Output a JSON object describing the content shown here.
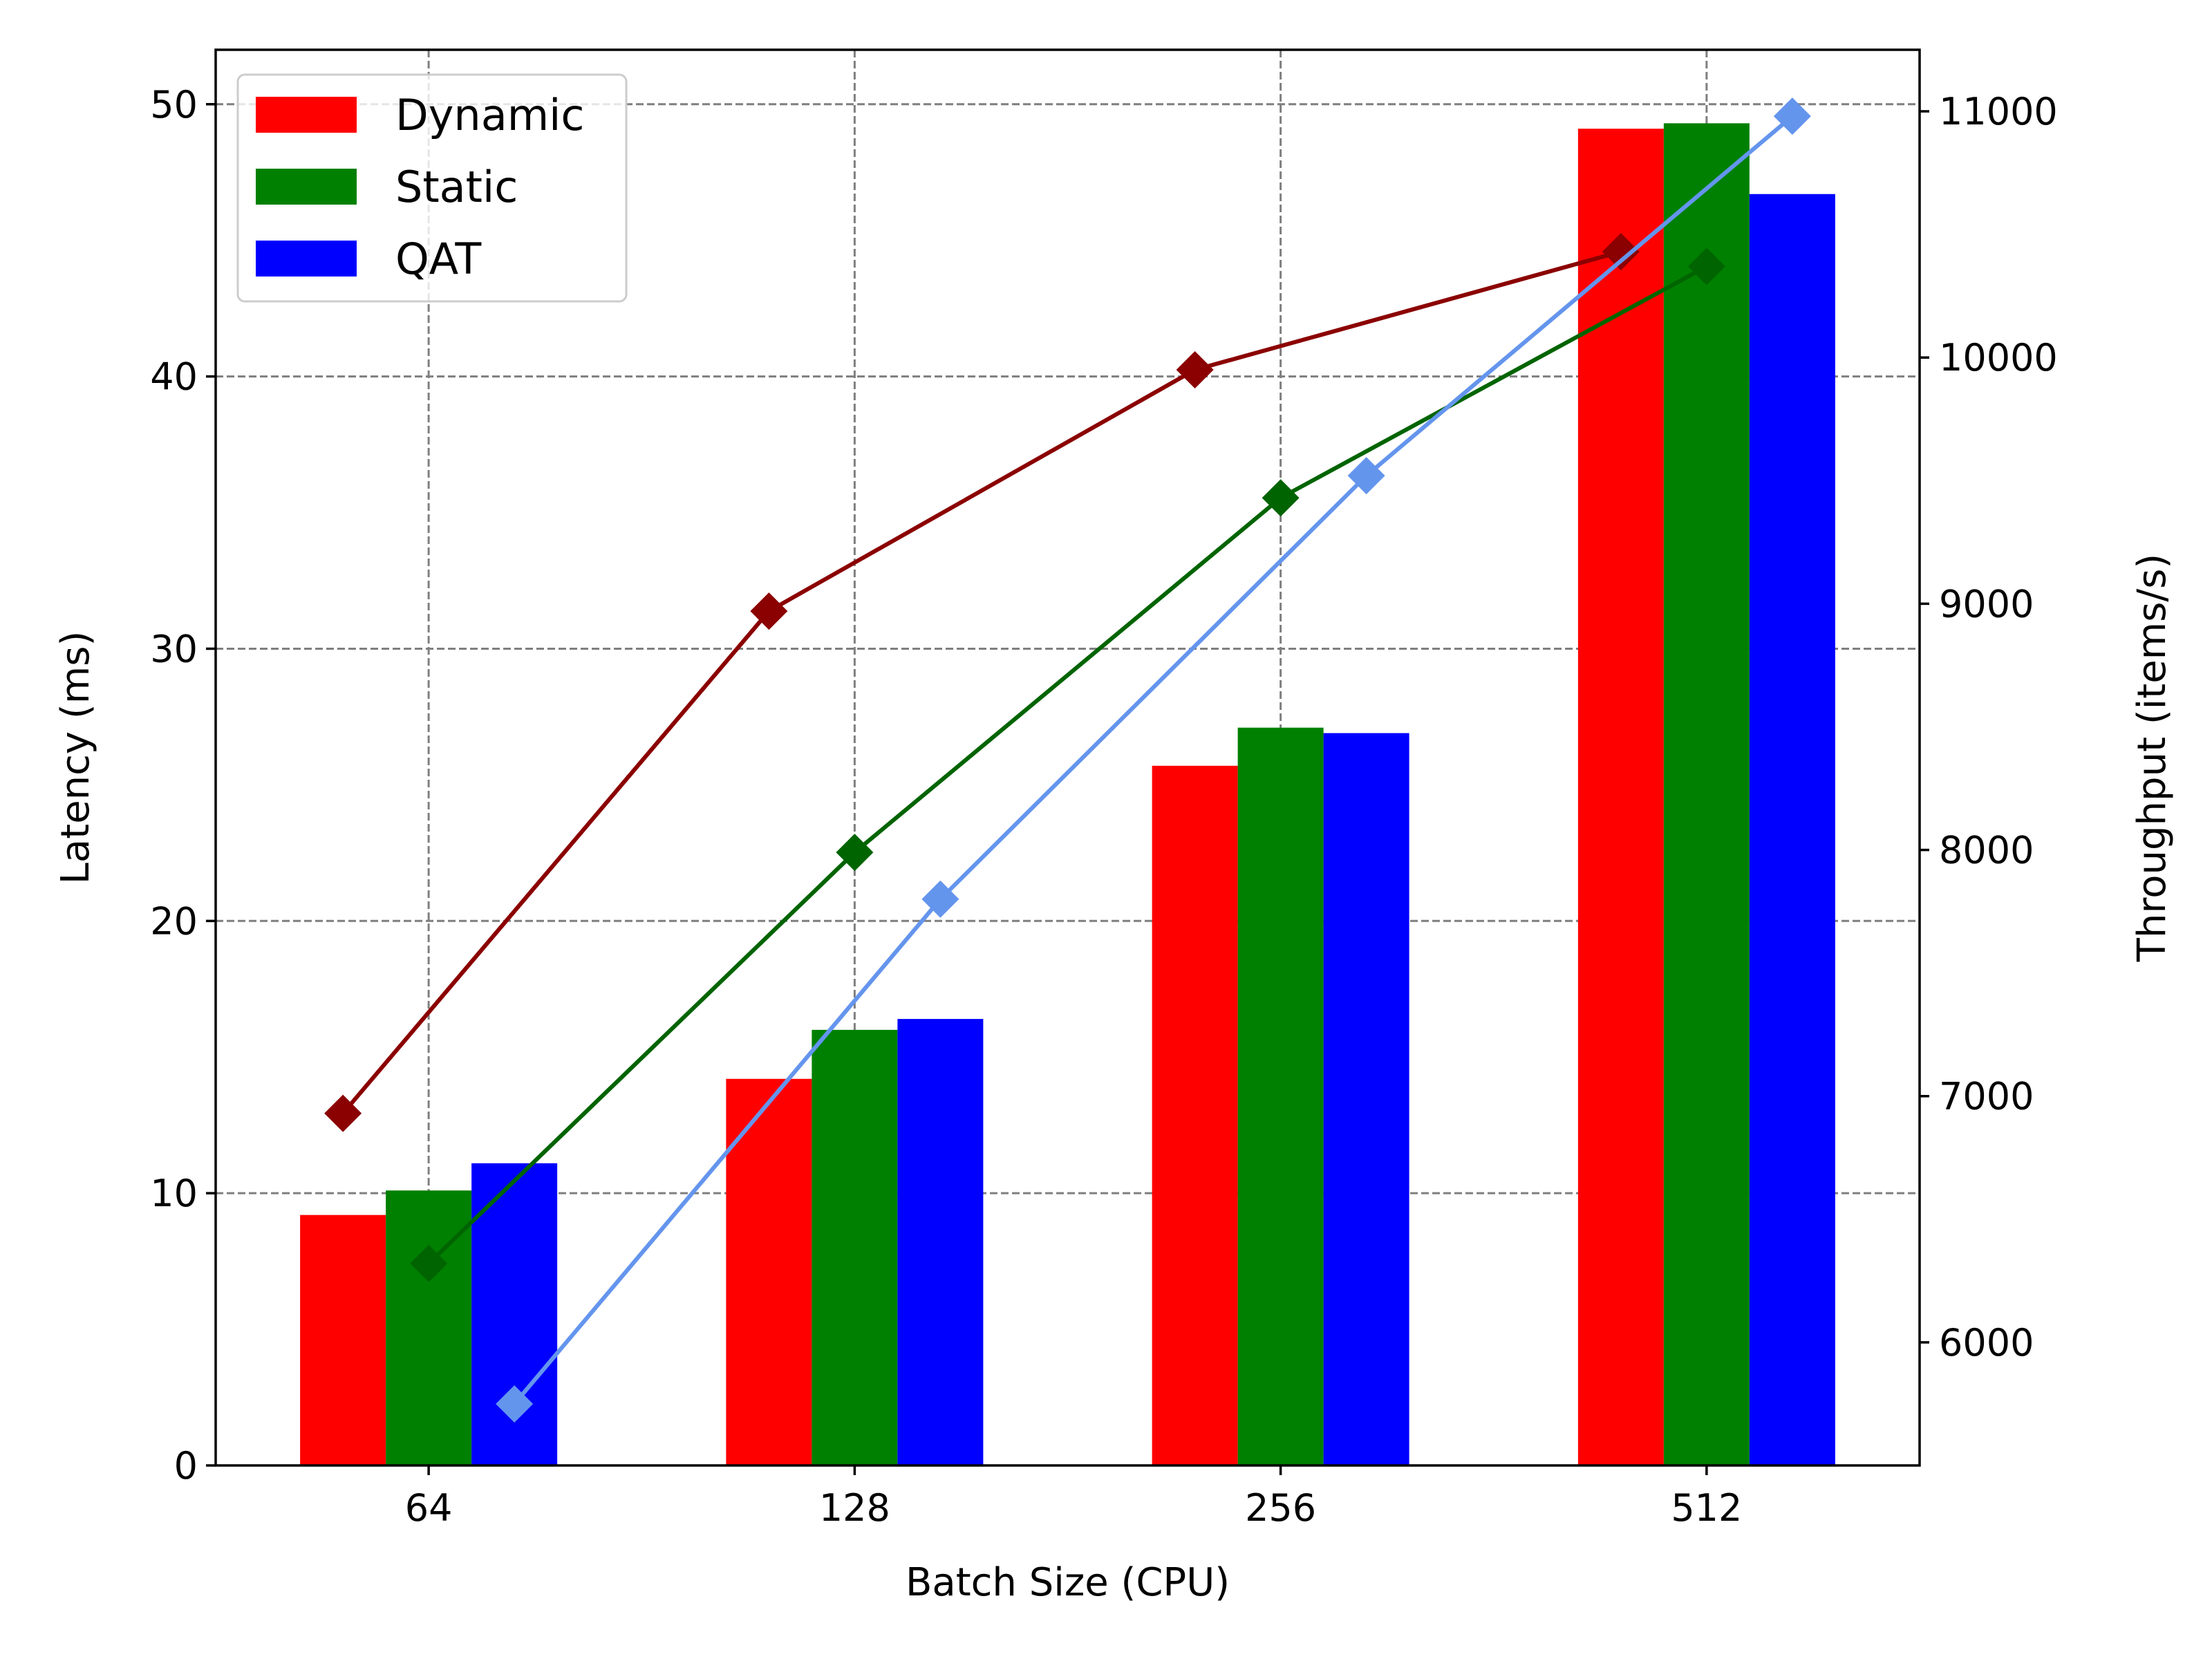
{
  "chart_data": {
    "type": "bar",
    "xlabel": "Batch Size (CPU)",
    "ylabel": "Latency (ms)",
    "y2label": "Throughput (items/s)",
    "categories": [
      "64",
      "128",
      "256",
      "512"
    ],
    "ylim": [
      0,
      52
    ],
    "y2lim": [
      5500,
      11250
    ],
    "yticks": [
      "0",
      "10",
      "20",
      "30",
      "40",
      "50"
    ],
    "y2ticks": [
      "6000",
      "7000",
      "8000",
      "9000",
      "10000",
      "11000"
    ],
    "grid": true,
    "legend_position": "upper-left",
    "bar_series": [
      {
        "name": "Dynamic",
        "color": "#ff0000",
        "values": [
          9.2,
          14.2,
          25.7,
          49.1
        ]
      },
      {
        "name": "Static",
        "color": "#008000",
        "values": [
          10.1,
          16.0,
          27.1,
          49.3
        ]
      },
      {
        "name": "QAT",
        "color": "#0000ff",
        "values": [
          11.1,
          16.4,
          26.9,
          46.7
        ]
      }
    ],
    "line_series": [
      {
        "color": "#8b0000",
        "marker": "diamond",
        "values": [
          6930,
          8970,
          9950,
          10430
        ]
      },
      {
        "color": "#006400",
        "marker": "diamond",
        "values": [
          6320,
          7990,
          9430,
          10370
        ]
      },
      {
        "color": "#6495ed",
        "marker": "diamond",
        "values": [
          5750,
          7800,
          9520,
          10980
        ]
      }
    ]
  }
}
